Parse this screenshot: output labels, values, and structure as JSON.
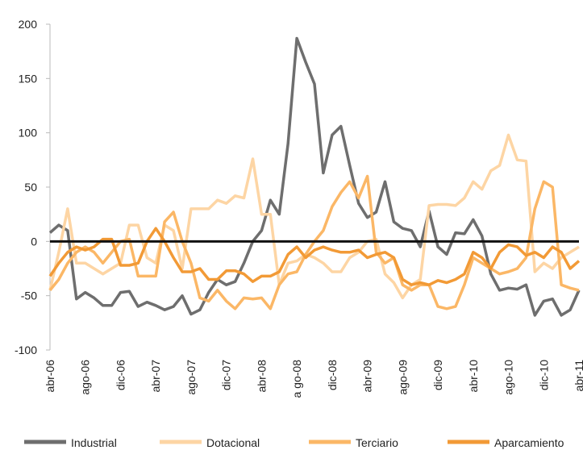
{
  "chart_data": {
    "type": "line",
    "categories": [
      "abr-06",
      null,
      null,
      null,
      "ago-06",
      null,
      null,
      null,
      "dic-06",
      null,
      null,
      null,
      "abr-07",
      null,
      null,
      null,
      "ago-07",
      null,
      null,
      null,
      "dic-07",
      null,
      null,
      null,
      "abr-08",
      null,
      null,
      null,
      "a go-08",
      null,
      null,
      null,
      "dic-08",
      null,
      null,
      null,
      "abr-09",
      null,
      null,
      null,
      "ago-09",
      null,
      null,
      null,
      "dic-09",
      null,
      null,
      null,
      "abr-10",
      null,
      null,
      null,
      "ago-10",
      null,
      null,
      null,
      "dic-10",
      null,
      null,
      null,
      "abr-11"
    ],
    "series": [
      {
        "name": "Industrial",
        "color": "#6e6e6e",
        "values": [
          8,
          15,
          10,
          -53,
          -47,
          -52,
          -59,
          -59,
          -47,
          -46,
          -60,
          -56,
          -59,
          -63,
          -60,
          -50,
          -67,
          -63,
          -47,
          -35,
          -40,
          -37,
          -20,
          0,
          10,
          38,
          25,
          90,
          187,
          165,
          145,
          63,
          98,
          106,
          70,
          35,
          22,
          27,
          55,
          18,
          12,
          10,
          -5,
          28,
          -5,
          -12,
          8,
          7,
          20,
          5,
          -30,
          -45,
          -43,
          -44,
          -40,
          -68,
          -55,
          -53,
          -68,
          -63,
          -45
        ]
      },
      {
        "name": "Dotacional",
        "color": "#fdd5a4",
        "values": [
          -45,
          -10,
          30,
          -20,
          -20,
          -25,
          -30,
          -25,
          -20,
          15,
          15,
          -15,
          -20,
          15,
          10,
          -25,
          30,
          30,
          30,
          38,
          35,
          42,
          40,
          76,
          25,
          25,
          -40,
          -20,
          -18,
          -12,
          -15,
          -20,
          -28,
          -28,
          -15,
          -10,
          0,
          2,
          -30,
          -38,
          -52,
          -40,
          -35,
          33,
          34,
          34,
          33,
          40,
          55,
          48,
          65,
          70,
          98,
          75,
          74,
          -28,
          -20,
          -25,
          -15,
          -10,
          -5
        ]
      },
      {
        "name": "Terciario",
        "color": "#fbb766",
        "values": [
          -45,
          -35,
          -20,
          -10,
          -5,
          -10,
          -20,
          -10,
          0,
          2,
          -32,
          -32,
          -32,
          18,
          27,
          0,
          -20,
          -52,
          -55,
          -45,
          -55,
          -62,
          -52,
          -53,
          -52,
          -62,
          -40,
          -30,
          -28,
          -12,
          0,
          10,
          32,
          45,
          55,
          40,
          60,
          -10,
          -20,
          -15,
          -40,
          -45,
          -40,
          -40,
          -60,
          -62,
          -60,
          -40,
          -15,
          -20,
          -25,
          -30,
          -28,
          -25,
          -15,
          30,
          55,
          50,
          -40,
          -43,
          -45
        ]
      },
      {
        "name": "Aparcamiento",
        "color": "#f29a36",
        "values": [
          -32,
          -20,
          -10,
          -5,
          -8,
          -5,
          2,
          2,
          -22,
          -22,
          -20,
          0,
          12,
          0,
          -15,
          -28,
          -28,
          -25,
          -35,
          -35,
          -27,
          -27,
          -30,
          -37,
          -32,
          -32,
          -28,
          -12,
          -5,
          -15,
          -8,
          -5,
          -8,
          -10,
          -10,
          -8,
          -15,
          -12,
          -10,
          -15,
          -35,
          -40,
          -38,
          -40,
          -36,
          -38,
          -35,
          -30,
          -10,
          -15,
          -25,
          -10,
          -3,
          -5,
          -13,
          -10,
          -15,
          -5,
          -10,
          -25,
          -18
        ]
      }
    ],
    "ylim": [
      -100,
      200
    ],
    "yticks": [
      -100,
      -50,
      0,
      50,
      100,
      150,
      200
    ],
    "zero_line": true,
    "legend": "bottom"
  }
}
